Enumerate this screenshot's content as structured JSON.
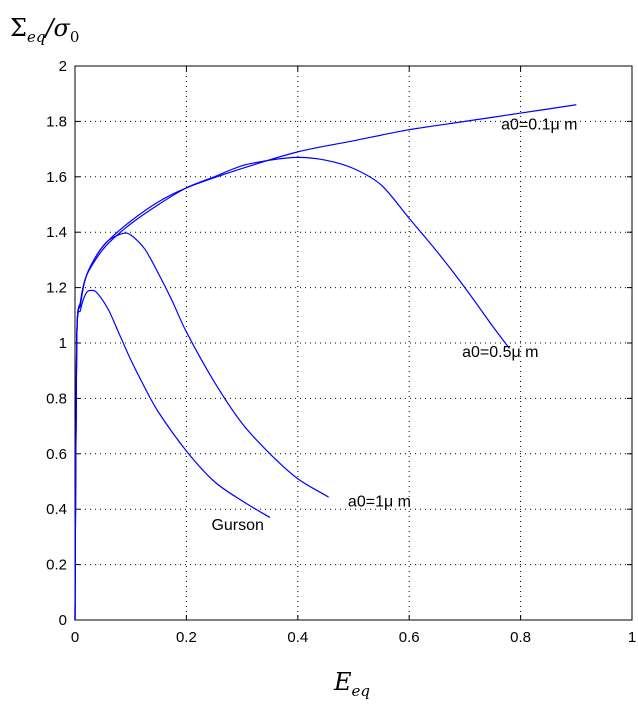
{
  "chart_data": {
    "type": "line",
    "xlabel": "E_eq",
    "ylabel": "Σ_eq/σ_0",
    "xlim": [
      0,
      1
    ],
    "ylim": [
      0,
      2
    ],
    "x_ticks": [
      "0",
      "0.2",
      "0.4",
      "0.6",
      "0.8",
      "1"
    ],
    "y_ticks": [
      "0",
      "0.2",
      "0.4",
      "0.6",
      "0.8",
      "1",
      "1.2",
      "1.4",
      "1.6",
      "1.8",
      "2"
    ],
    "grid": true,
    "line_color": "#0000ff",
    "series": [
      {
        "name": "a0=0.1μ m",
        "x": [
          0,
          0.003,
          0.01,
          0.02,
          0.04,
          0.06,
          0.1,
          0.15,
          0.2,
          0.3,
          0.4,
          0.5,
          0.6,
          0.7,
          0.8,
          0.9
        ],
        "y": [
          0,
          1.0,
          1.15,
          1.24,
          1.32,
          1.37,
          1.44,
          1.51,
          1.56,
          1.63,
          1.69,
          1.73,
          1.77,
          1.8,
          1.83,
          1.86
        ]
      },
      {
        "name": "a0=0.5μ m",
        "x": [
          0,
          0.003,
          0.01,
          0.02,
          0.04,
          0.06,
          0.1,
          0.15,
          0.2,
          0.25,
          0.3,
          0.35,
          0.4,
          0.45,
          0.5,
          0.55,
          0.6,
          0.65,
          0.7,
          0.75,
          0.78
        ],
        "y": [
          0,
          1.0,
          1.15,
          1.24,
          1.31,
          1.36,
          1.43,
          1.5,
          1.56,
          1.6,
          1.64,
          1.66,
          1.67,
          1.66,
          1.63,
          1.57,
          1.45,
          1.33,
          1.2,
          1.06,
          0.98
        ]
      },
      {
        "name": "a0=1μ m",
        "x": [
          0,
          0.003,
          0.01,
          0.02,
          0.04,
          0.06,
          0.085,
          0.1,
          0.125,
          0.15,
          0.175,
          0.2,
          0.25,
          0.3,
          0.35,
          0.4,
          0.45,
          0.455
        ],
        "y": [
          0,
          1.0,
          1.14,
          1.24,
          1.32,
          1.37,
          1.395,
          1.39,
          1.34,
          1.25,
          1.15,
          1.04,
          0.86,
          0.71,
          0.6,
          0.51,
          0.45,
          0.445
        ]
      },
      {
        "name": "Gurson",
        "x": [
          0,
          0.003,
          0.01,
          0.02,
          0.03,
          0.04,
          0.06,
          0.08,
          0.1,
          0.125,
          0.15,
          0.2,
          0.25,
          0.3,
          0.35
        ],
        "y": [
          0,
          1.0,
          1.12,
          1.18,
          1.19,
          1.18,
          1.12,
          1.03,
          0.94,
          0.84,
          0.75,
          0.61,
          0.5,
          0.43,
          0.37
        ]
      }
    ],
    "annotations": [
      {
        "text": "a0=0.1μ m",
        "x": 0.765,
        "y": 1.77
      },
      {
        "text": "a0=0.5μ m",
        "x": 0.695,
        "y": 0.95
      },
      {
        "text": "a0=1μ m",
        "x": 0.49,
        "y": 0.41
      },
      {
        "text": "Gurson",
        "x": 0.245,
        "y": 0.325
      }
    ]
  }
}
